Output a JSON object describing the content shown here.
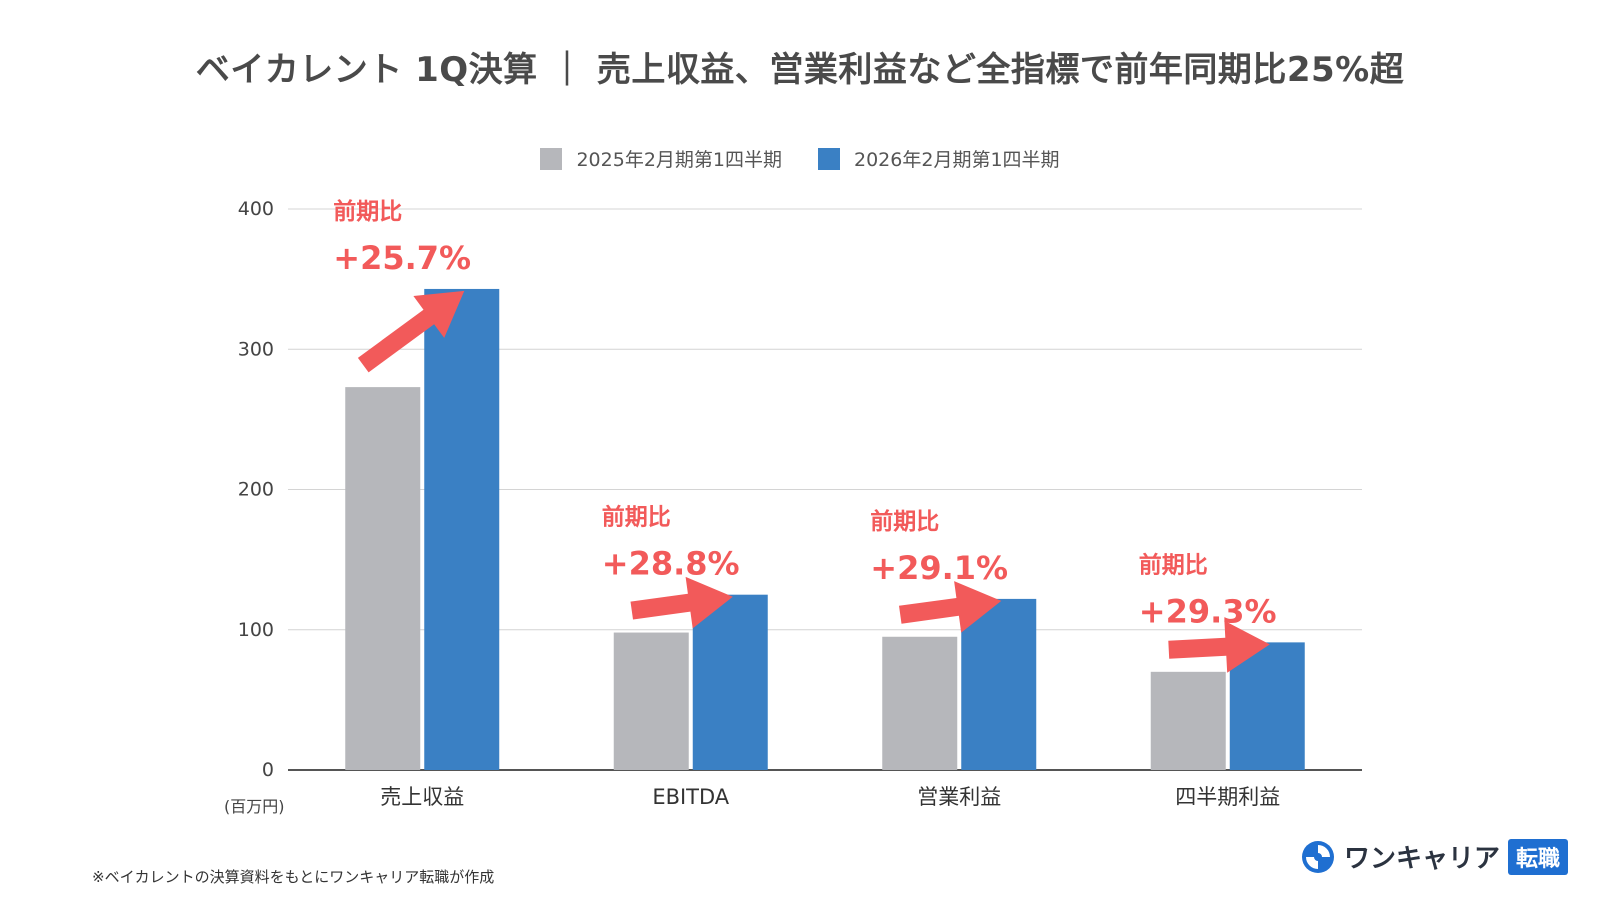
{
  "title": "ベイカレント 1Q決算 ｜ 売上収益、営業利益など全指標で前年同期比25%超",
  "legend": {
    "items": [
      {
        "label": "2025年2月期第1四半期",
        "color": "#b6b7bb"
      },
      {
        "label": "2026年2月期第1四半期",
        "color": "#3a80c4"
      }
    ]
  },
  "unit_label": "(百万円)",
  "footnote": "※ベイカレントの決算資料をもとにワンキャリア転職が作成",
  "logo": {
    "text": "ワンキャリア",
    "badge": "転職"
  },
  "annotations": [
    {
      "label": "前期比",
      "value": "+25.7%"
    },
    {
      "label": "前期比",
      "value": "+28.8%"
    },
    {
      "label": "前期比",
      "value": "+29.1%"
    },
    {
      "label": "前期比",
      "value": "+29.3%"
    }
  ],
  "colors": {
    "accent": "#f25a5a",
    "prev": "#b6b7bb",
    "curr": "#3a80c4"
  },
  "chart_data": {
    "type": "bar",
    "categories": [
      "売上収益",
      "EBITDA",
      "営業利益",
      "四半期利益"
    ],
    "series": [
      {
        "name": "2025年2月期第1四半期",
        "values": [
          273,
          98,
          95,
          70
        ]
      },
      {
        "name": "2026年2月期第1四半期",
        "values": [
          343,
          125,
          122,
          91
        ]
      }
    ],
    "yticks": [
      "0",
      "100",
      "200",
      "300",
      "400"
    ],
    "ylim": [
      0,
      400
    ],
    "grid": true,
    "legend_position": "top"
  }
}
